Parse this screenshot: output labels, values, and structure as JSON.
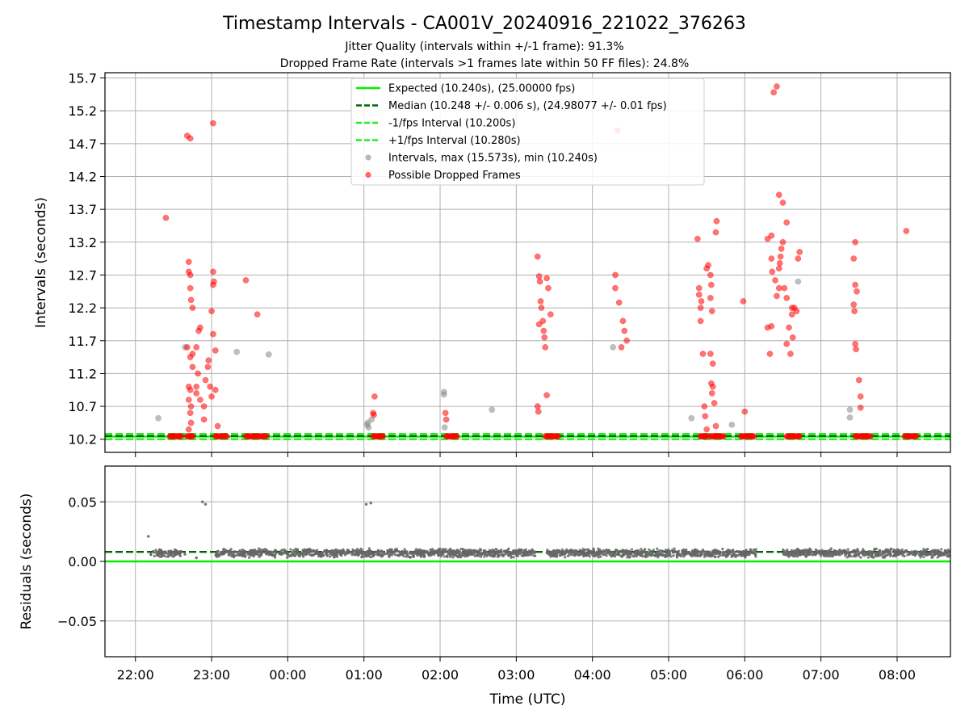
{
  "chart_data": [
    {
      "type": "scatter",
      "title": "Timestamp Intervals - CA001V_20240916_221022_376263",
      "subtitle_lines": [
        "Jitter Quality (intervals within +/-1 frame): 91.3%",
        "Dropped Frame Rate (intervals >1 frames late within 50 FF files): 24.8%"
      ],
      "xlabel": "",
      "ylabel": "Intervals (seconds)",
      "xlim_hours": [
        21.6,
        32.7
      ],
      "ylim": [
        10.0,
        15.78
      ],
      "yticks": [
        10.2,
        10.7,
        11.2,
        11.7,
        12.2,
        12.7,
        13.2,
        13.7,
        14.2,
        14.7,
        15.2,
        15.7
      ],
      "ytick_labels": [
        "10.2",
        "10.7",
        "11.2",
        "11.7",
        "12.2",
        "12.7",
        "13.2",
        "13.7",
        "14.2",
        "14.7",
        "15.2",
        "15.7"
      ],
      "grid": true,
      "legend_placement": "top-center",
      "series": [
        {
          "name": "Expected (10.240s), (25.00000 fps)",
          "kind": "hline",
          "y": 10.24,
          "color": "#00ee00",
          "dash": "solid"
        },
        {
          "name": "Median (10.248 +/- 0.006 s), (24.98077 +/- 0.01 fps)",
          "kind": "hline",
          "y": 10.248,
          "color": "#006400",
          "dash": "dashed"
        },
        {
          "name": "-1/fps Interval (10.200s)",
          "kind": "hline",
          "y": 10.2,
          "color": "#22ee22",
          "dash": "dashed"
        },
        {
          "name": "+1/fps Interval (10.280s)",
          "kind": "hline",
          "y": 10.28,
          "color": "#22ee22",
          "dash": "dashed"
        },
        {
          "name": "Intervals, max (15.573s), min (10.240s)",
          "kind": "scatter",
          "color": "#888888",
          "points": [
            [
              22.3,
              10.52
            ],
            [
              22.65,
              11.6
            ],
            [
              23.33,
              11.53
            ],
            [
              23.75,
              11.49
            ],
            [
              25.05,
              10.45
            ],
            [
              25.06,
              10.38
            ],
            [
              25.04,
              10.42
            ],
            [
              25.1,
              10.5
            ],
            [
              26.05,
              10.92
            ],
            [
              26.05,
              10.88
            ],
            [
              26.06,
              10.38
            ],
            [
              26.68,
              10.65
            ],
            [
              28.27,
              11.6
            ],
            [
              29.3,
              10.52
            ],
            [
              29.83,
              10.42
            ],
            [
              30.7,
              12.6
            ],
            [
              31.38,
              10.53
            ],
            [
              31.38,
              10.65
            ]
          ]
        },
        {
          "name": "Possible Dropped Frames",
          "kind": "scatter",
          "color": "#ff0000",
          "points": [
            [
              22.4,
              13.57
            ],
            [
              22.68,
              14.82
            ],
            [
              22.72,
              14.78
            ],
            [
              23.02,
              15.01
            ],
            [
              22.7,
              12.9
            ],
            [
              22.7,
              12.75
            ],
            [
              22.72,
              12.7
            ],
            [
              22.72,
              12.5
            ],
            [
              22.73,
              12.32
            ],
            [
              22.75,
              12.2
            ],
            [
              22.68,
              11.6
            ],
            [
              22.72,
              11.45
            ],
            [
              22.75,
              11.5
            ],
            [
              22.75,
              11.3
            ],
            [
              22.7,
              11.0
            ],
            [
              22.72,
              10.95
            ],
            [
              22.7,
              10.8
            ],
            [
              22.73,
              10.7
            ],
            [
              22.72,
              10.6
            ],
            [
              22.73,
              10.45
            ],
            [
              22.7,
              10.35
            ],
            [
              22.8,
              11.0
            ],
            [
              22.82,
              11.2
            ],
            [
              22.8,
              11.6
            ],
            [
              22.83,
              11.85
            ],
            [
              22.85,
              11.9
            ],
            [
              22.8,
              10.9
            ],
            [
              22.85,
              10.8
            ],
            [
              22.9,
              10.7
            ],
            [
              22.9,
              10.5
            ],
            [
              22.92,
              11.1
            ],
            [
              22.95,
              11.3
            ],
            [
              22.96,
              11.4
            ],
            [
              22.98,
              11.0
            ],
            [
              23.0,
              10.85
            ],
            [
              23.02,
              11.8
            ],
            [
              23.0,
              12.15
            ],
            [
              23.02,
              12.55
            ],
            [
              23.03,
              12.6
            ],
            [
              23.02,
              12.75
            ],
            [
              23.05,
              11.55
            ],
            [
              23.05,
              10.95
            ],
            [
              23.08,
              10.4
            ],
            [
              23.45,
              12.62
            ],
            [
              23.6,
              12.1
            ],
            [
              25.12,
              10.6
            ],
            [
              25.13,
              10.57
            ],
            [
              25.14,
              10.85
            ],
            [
              26.07,
              10.6
            ],
            [
              26.08,
              10.5
            ],
            [
              27.28,
              12.98
            ],
            [
              27.3,
              12.68
            ],
            [
              27.31,
              12.6
            ],
            [
              27.32,
              12.3
            ],
            [
              27.33,
              12.2
            ],
            [
              27.35,
              12.0
            ],
            [
              27.36,
              11.85
            ],
            [
              27.37,
              11.75
            ],
            [
              27.38,
              11.6
            ],
            [
              27.3,
              11.95
            ],
            [
              27.28,
              10.7
            ],
            [
              27.29,
              10.62
            ],
            [
              27.4,
              10.87
            ],
            [
              27.45,
              12.1
            ],
            [
              27.42,
              12.5
            ],
            [
              27.4,
              12.65
            ],
            [
              28.33,
              14.9
            ],
            [
              28.3,
              12.7
            ],
            [
              28.3,
              12.5
            ],
            [
              28.35,
              12.28
            ],
            [
              28.38,
              11.6
            ],
            [
              28.4,
              12.0
            ],
            [
              28.42,
              11.85
            ],
            [
              28.45,
              11.7
            ],
            [
              29.38,
              13.25
            ],
            [
              29.4,
              12.5
            ],
            [
              29.4,
              12.4
            ],
            [
              29.42,
              12.2
            ],
            [
              29.42,
              12.0
            ],
            [
              29.43,
              12.3
            ],
            [
              29.45,
              11.5
            ],
            [
              29.47,
              10.7
            ],
            [
              29.48,
              10.55
            ],
            [
              29.5,
              10.35
            ],
            [
              29.52,
              12.85
            ],
            [
              29.5,
              12.8
            ],
            [
              29.55,
              12.7
            ],
            [
              29.56,
              12.55
            ],
            [
              29.55,
              12.35
            ],
            [
              29.57,
              12.15
            ],
            [
              29.55,
              11.5
            ],
            [
              29.58,
              11.35
            ],
            [
              29.56,
              11.05
            ],
            [
              29.58,
              11.0
            ],
            [
              29.57,
              10.9
            ],
            [
              29.6,
              10.75
            ],
            [
              29.62,
              10.4
            ],
            [
              29.63,
              13.52
            ],
            [
              29.62,
              13.35
            ],
            [
              29.98,
              12.3
            ],
            [
              30.0,
              10.62
            ],
            [
              30.45,
              12.8
            ],
            [
              30.46,
              12.88
            ],
            [
              30.47,
              12.98
            ],
            [
              30.48,
              13.1
            ],
            [
              30.5,
              13.2
            ],
            [
              30.52,
              12.5
            ],
            [
              30.55,
              12.35
            ],
            [
              30.58,
              11.9
            ],
            [
              30.6,
              11.5
            ],
            [
              30.62,
              12.2
            ],
            [
              30.38,
              15.48
            ],
            [
              30.42,
              15.57
            ],
            [
              30.45,
              13.92
            ],
            [
              30.5,
              13.8
            ],
            [
              30.55,
              13.5
            ],
            [
              30.35,
              13.3
            ],
            [
              30.3,
              13.25
            ],
            [
              30.35,
              12.95
            ],
            [
              30.36,
              12.75
            ],
            [
              30.4,
              12.62
            ],
            [
              30.45,
              12.5
            ],
            [
              30.42,
              12.38
            ],
            [
              30.3,
              11.9
            ],
            [
              30.35,
              11.92
            ],
            [
              30.33,
              11.5
            ],
            [
              30.55,
              11.65
            ],
            [
              30.62,
              12.1
            ],
            [
              30.63,
              11.75
            ],
            [
              30.65,
              12.2
            ],
            [
              30.68,
              12.15
            ],
            [
              30.7,
              12.95
            ],
            [
              30.72,
              13.05
            ],
            [
              31.45,
              13.2
            ],
            [
              31.43,
              12.95
            ],
            [
              31.45,
              12.55
            ],
            [
              31.47,
              12.45
            ],
            [
              31.43,
              12.25
            ],
            [
              31.44,
              12.15
            ],
            [
              31.45,
              11.65
            ],
            [
              31.46,
              11.57
            ],
            [
              31.5,
              11.1
            ],
            [
              31.52,
              10.85
            ],
            [
              31.52,
              10.68
            ],
            [
              32.12,
              13.37
            ]
          ]
        }
      ]
    },
    {
      "type": "scatter",
      "xlabel": "Time (UTC)",
      "ylabel": "Residuals (seconds)",
      "xlim_hours": [
        21.6,
        32.7
      ],
      "ylim": [
        -0.08,
        0.08
      ],
      "yticks": [
        0.05,
        0.0,
        -0.05
      ],
      "ytick_labels": [
        "0.05",
        "0.00",
        "−0.05"
      ],
      "xticks_hours": [
        22,
        23,
        24,
        25,
        26,
        27,
        28,
        29,
        30,
        31,
        32
      ],
      "xtick_labels": [
        "22:00",
        "23:00",
        "00:00",
        "01:00",
        "02:00",
        "03:00",
        "04:00",
        "05:00",
        "06:00",
        "07:00",
        "08:00"
      ],
      "grid": true,
      "series": [
        {
          "kind": "hline",
          "y": 0.0,
          "color": "#00ee00",
          "dash": "solid"
        },
        {
          "kind": "hline",
          "y": 0.008,
          "color": "#006400",
          "dash": "dashed"
        },
        {
          "kind": "band",
          "color": "#666666",
          "center": 0.007,
          "spread": 0.004,
          "ranges_hours": [
            [
              22.2,
              22.6
            ],
            [
              23.05,
              27.25
            ],
            [
              27.4,
              30.15
            ],
            [
              30.5,
              32.7
            ]
          ]
        },
        {
          "kind": "scatter",
          "color": "#666666",
          "points": [
            [
              22.17,
              0.021
            ],
            [
              22.88,
              0.05
            ],
            [
              22.92,
              0.048
            ],
            [
              25.03,
              0.048
            ],
            [
              25.09,
              0.049
            ],
            [
              22.8,
              0.003
            ],
            [
              22.65,
              0.006
            ]
          ]
        }
      ]
    }
  ]
}
